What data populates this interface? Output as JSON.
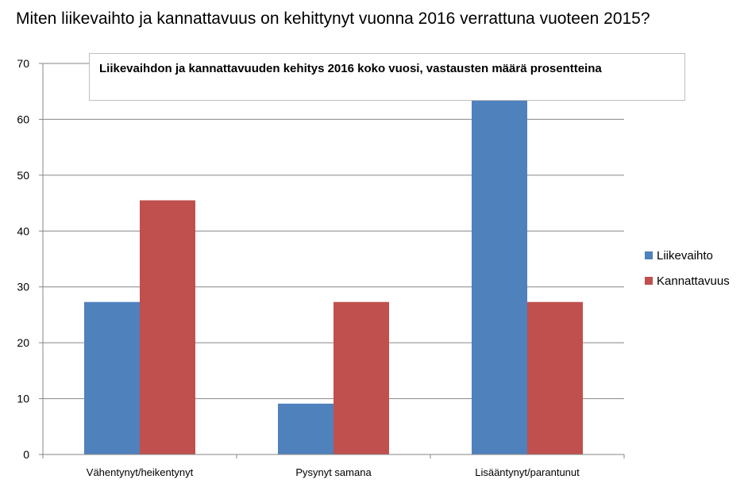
{
  "page": {
    "question": "Miten liikevaihto ja kannattavuus on kehittynyt vuonna 2016 verrattuna vuoteen 2015?"
  },
  "chart_data": {
    "type": "bar",
    "title": "Liikevaihdon ja kannattavuuden kehitys 2016 koko vuosi, vastausten määrä prosentteina",
    "categories": [
      "Vähentynyt/heikentynyt",
      "Pysynyt samana",
      "Lisääntynyt/parantunut"
    ],
    "series": [
      {
        "name": "Liikevaihto",
        "values": [
          27.3,
          9.1,
          63.6
        ],
        "color": "#4f81bd"
      },
      {
        "name": "Kannattavuus",
        "values": [
          45.5,
          27.3,
          27.3
        ],
        "color": "#c0504d"
      }
    ],
    "ylim": [
      0,
      70
    ],
    "yticks": [
      0,
      10,
      20,
      30,
      40,
      50,
      60,
      70
    ],
    "grid": true,
    "legend_position": "right"
  }
}
